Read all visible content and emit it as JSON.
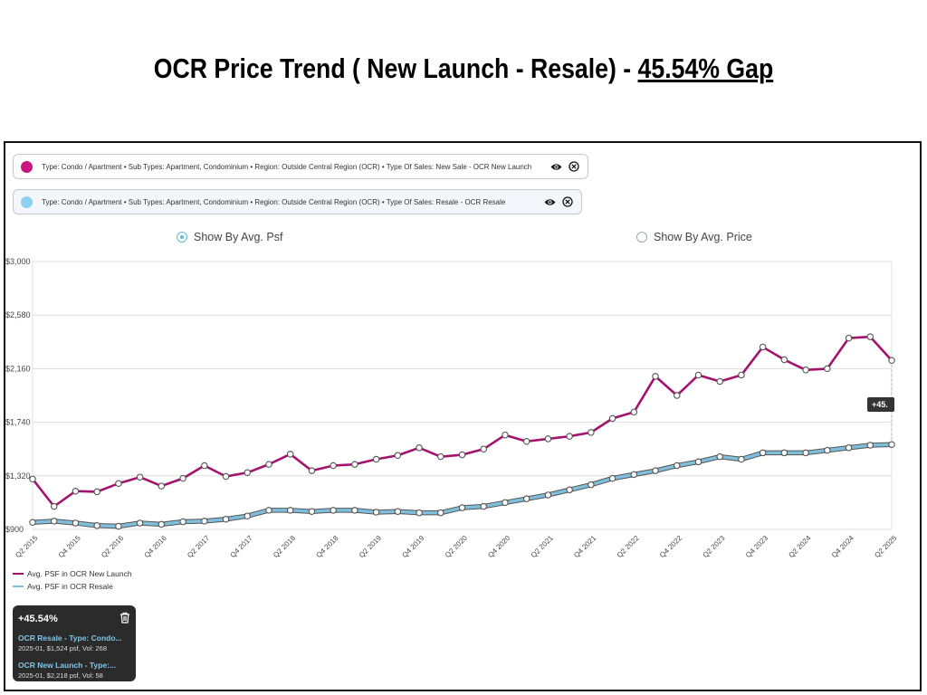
{
  "title": {
    "main": "OCR Price Trend ( New Launch - Resale) - ",
    "gap": "45.54% Gap"
  },
  "filters": [
    {
      "label": "Type: Condo / Apartment • Sub Types: Apartment, Condominium • Region: Outside Central Region (OCR) • Type Of Sales: New Sale - OCR New Launch",
      "color": "#cc1480"
    },
    {
      "label": "Type: Condo / Apartment • Sub Types: Apartment, Condominium • Region: Outside Central Region (OCR) • Type Of Sales: Resale - OCR Resale",
      "color": "#8dd0ef"
    }
  ],
  "toggle": {
    "option1": "Show By Avg. Psf",
    "option2": "Show By Avg. Price",
    "selected": "option1"
  },
  "gap_marker": "+45.",
  "tooltip": {
    "gap": "+45.54%",
    "item1_name": "OCR Resale - Type: Condo...",
    "item1_detail": "2025-01, $1,524 psf, Vol: 268",
    "item2_name": "OCR New Launch - Type:...",
    "item2_detail": "2025-01, $2,218 psf, Vol: 58"
  },
  "chart_data": {
    "type": "line",
    "y_ticks": [
      "$900",
      "$1,320",
      "$1,740",
      "$2,160",
      "$2,580",
      "$3,000"
    ],
    "ylim": [
      900,
      3000
    ],
    "x_tick_labels": [
      "Q2 2015",
      "Q4 2015",
      "Q2 2016",
      "Q4 2016",
      "Q2 2017",
      "Q4 2017",
      "Q2 2018",
      "Q4 2018",
      "Q2 2019",
      "Q4 2019",
      "Q2 2020",
      "Q4 2020",
      "Q2 2021",
      "Q4 2021",
      "Q2 2022",
      "Q4 2022",
      "Q2 2023",
      "Q4 2023",
      "Q2 2024",
      "Q4 2024",
      "Q2 2025"
    ],
    "categories": [
      "Q2 2015",
      "Q3 2015",
      "Q4 2015",
      "Q1 2016",
      "Q2 2016",
      "Q3 2016",
      "Q4 2016",
      "Q1 2017",
      "Q2 2017",
      "Q3 2017",
      "Q4 2017",
      "Q1 2018",
      "Q2 2018",
      "Q3 2018",
      "Q4 2018",
      "Q1 2019",
      "Q2 2019",
      "Q3 2019",
      "Q4 2019",
      "Q1 2020",
      "Q2 2020",
      "Q3 2020",
      "Q4 2020",
      "Q1 2021",
      "Q2 2021",
      "Q3 2021",
      "Q4 2021",
      "Q1 2022",
      "Q2 2022",
      "Q3 2022",
      "Q4 2022",
      "Q1 2023",
      "Q2 2023",
      "Q3 2023",
      "Q4 2023",
      "Q1 2024",
      "Q2 2024",
      "Q3 2024",
      "Q4 2024",
      "Q1 2025",
      "Q2 2025"
    ],
    "series": [
      {
        "name": "Avg. PSF in OCR New Launch",
        "color": "#a3136e",
        "values": [
          1295,
          1080,
          1200,
          1195,
          1260,
          1310,
          1240,
          1300,
          1400,
          1315,
          1345,
          1410,
          1490,
          1360,
          1400,
          1410,
          1450,
          1480,
          1540,
          1470,
          1485,
          1530,
          1640,
          1590,
          1610,
          1630,
          1660,
          1770,
          1820,
          2100,
          1950,
          2110,
          2060,
          2110,
          2330,
          2230,
          2150,
          2160,
          2400,
          2410,
          2225
        ]
      },
      {
        "name": "Avg. PSF in OCR Resale",
        "color": "#7fbfdc",
        "values": [
          955,
          965,
          950,
          930,
          925,
          950,
          940,
          960,
          965,
          980,
          1005,
          1050,
          1050,
          1040,
          1050,
          1050,
          1035,
          1040,
          1030,
          1030,
          1070,
          1080,
          1110,
          1140,
          1170,
          1210,
          1250,
          1300,
          1330,
          1360,
          1400,
          1430,
          1470,
          1450,
          1500,
          1500,
          1500,
          1520,
          1540,
          1560,
          1565
        ]
      }
    ],
    "legend": [
      "Avg. PSF in OCR New Launch",
      "Avg. PSF in OCR Resale"
    ]
  }
}
